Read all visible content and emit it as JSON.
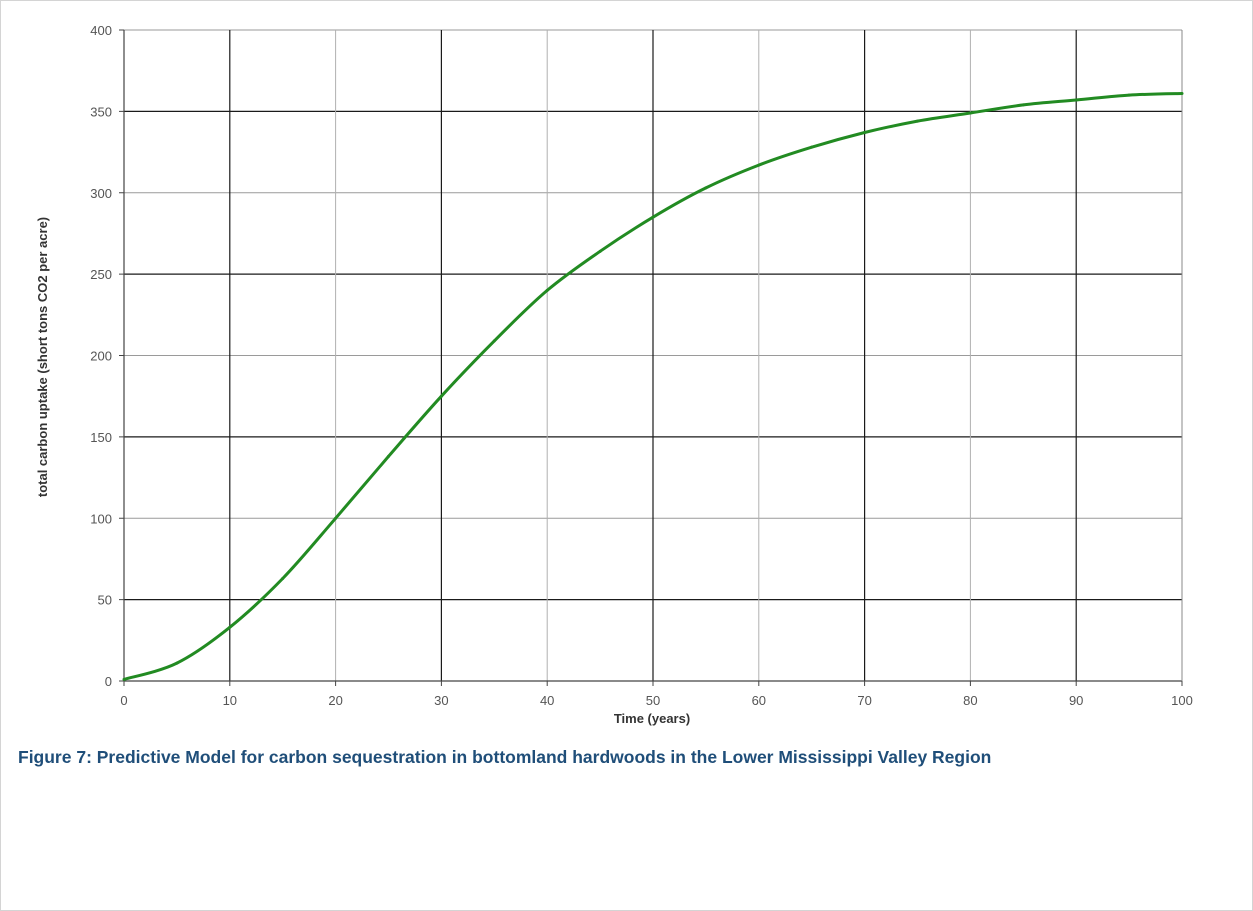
{
  "chart_data": {
    "type": "line",
    "xlabel": "Time (years)",
    "ylabel": "total carbon uptake (short tons CO2 per acre)",
    "xlim": [
      0,
      100
    ],
    "ylim": [
      0,
      400
    ],
    "xticks": [
      0,
      10,
      20,
      30,
      40,
      50,
      60,
      70,
      80,
      90,
      100
    ],
    "yticks": [
      0,
      50,
      100,
      150,
      200,
      250,
      300,
      350,
      400
    ],
    "x_tick_labels": [
      "0",
      "10",
      "20",
      "30",
      "40",
      "50",
      "60",
      "70",
      "80",
      "90",
      "100"
    ],
    "y_tick_labels": [
      "0",
      "50",
      "100",
      "150",
      "200",
      "250",
      "300",
      "350",
      "400"
    ],
    "grid": true,
    "legend": "none",
    "series": [
      {
        "color": "#228b22",
        "x": [
          0,
          5,
          10,
          15,
          20,
          25,
          30,
          35,
          40,
          45,
          50,
          55,
          60,
          65,
          70,
          75,
          80,
          85,
          90,
          95,
          100
        ],
        "y": [
          1,
          11,
          33,
          63,
          100,
          138,
          175,
          209,
          240,
          264,
          285,
          303,
          317,
          328,
          337,
          344,
          349,
          354,
          357,
          360,
          361
        ]
      }
    ]
  },
  "caption": "Figure 7:  Predictive Model for carbon sequestration in bottomland hardwoods in the Lower Mississippi Valley Region"
}
